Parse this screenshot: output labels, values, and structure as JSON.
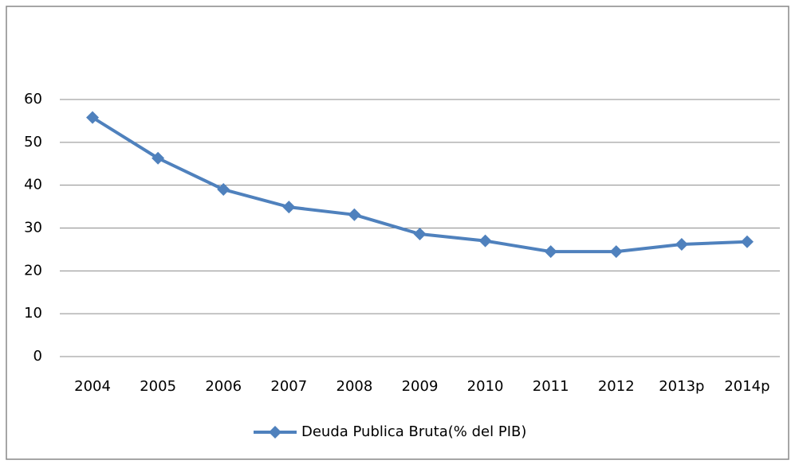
{
  "chart_data": {
    "type": "line",
    "categories": [
      "2004",
      "2005",
      "2006",
      "2007",
      "2008",
      "2009",
      "2010",
      "2011",
      "2012",
      "2013p",
      "2014p"
    ],
    "series": [
      {
        "name": "Deuda Publica Bruta(% del PIB)",
        "color": "#4f81bd",
        "values": [
          55.8,
          46.3,
          39.0,
          34.9,
          33.1,
          28.6,
          27.0,
          24.5,
          24.5,
          26.2,
          26.8
        ]
      }
    ],
    "ylim": [
      0,
      60
    ],
    "yticks": [
      0,
      10,
      20,
      30,
      40,
      50,
      60
    ],
    "grid": true,
    "legend": "bottom"
  }
}
